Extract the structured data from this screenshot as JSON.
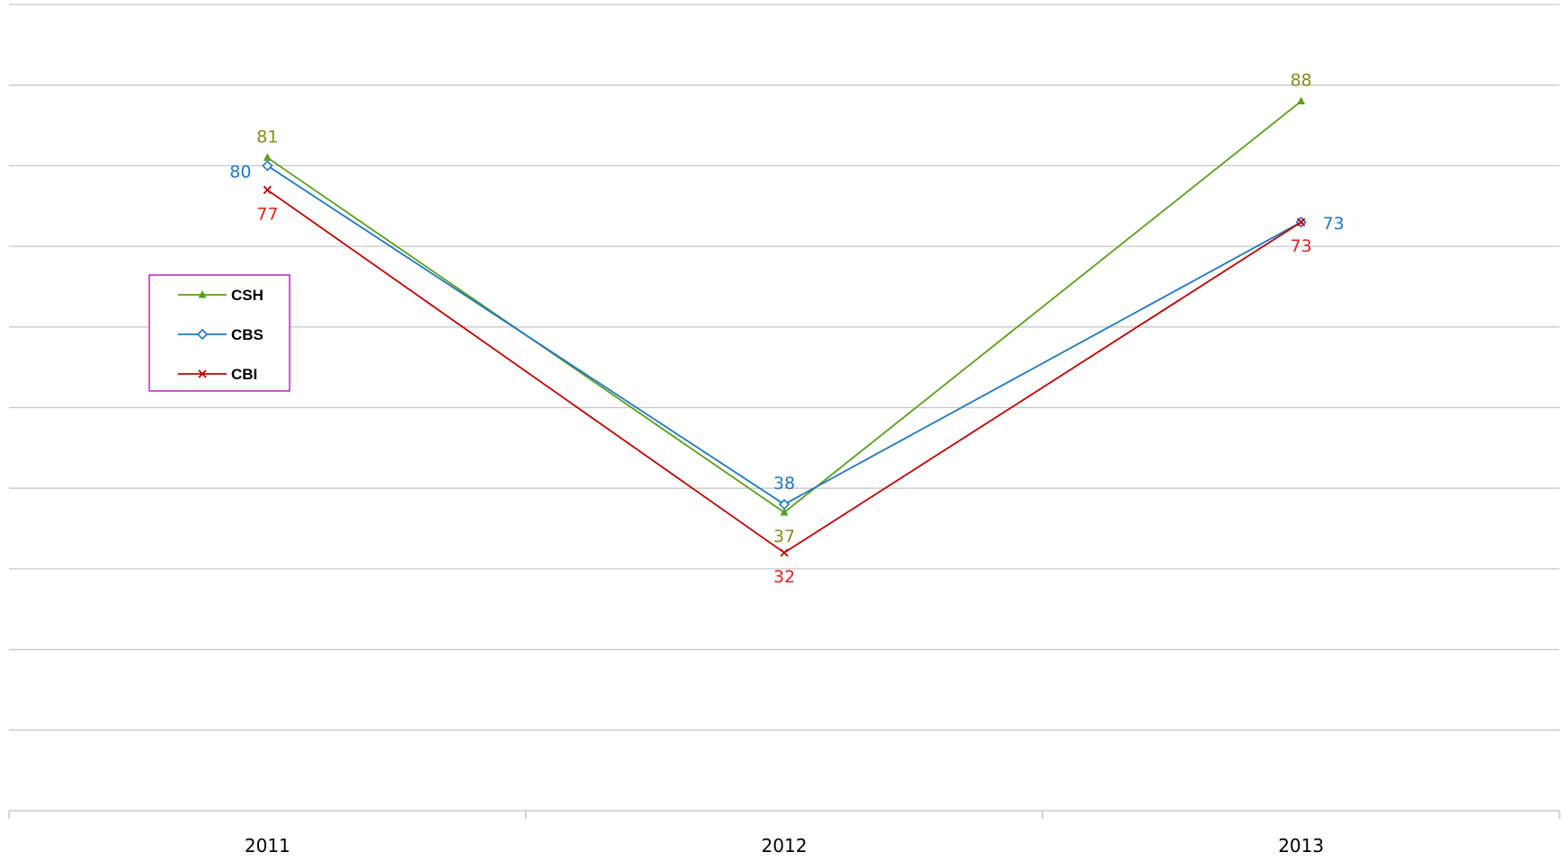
{
  "chart_data": {
    "type": "line",
    "title": "",
    "xlabel": "",
    "ylabel": "",
    "categories": [
      "2011",
      "2012",
      "2013"
    ],
    "ylim": [
      0,
      100
    ],
    "grid": true,
    "y_tick_labels_visible": false,
    "legend_position": "left",
    "series": [
      {
        "name": "CSH",
        "values": [
          81,
          37,
          88
        ],
        "line_color": "#5a9e1a",
        "label_color": "#8a8a1e",
        "marker": "triangle",
        "label_positions": [
          "above",
          "below",
          "above"
        ]
      },
      {
        "name": "CBS",
        "values": [
          80,
          38,
          73
        ],
        "line_color": "#1f77c4",
        "label_color": "#1f77c4",
        "marker": "diamond",
        "label_positions": [
          "left",
          "above",
          "right"
        ]
      },
      {
        "name": "CBI",
        "values": [
          77,
          32,
          73
        ],
        "line_color": "#c00000",
        "label_color": "#e0221f",
        "marker": "x",
        "label_positions": [
          "below",
          "below",
          "below"
        ]
      }
    ],
    "colors": {
      "grid": "#c8c8c8",
      "axis": "#bfbfbf",
      "legend_border": "#b000b0",
      "tick_label": "#000000"
    }
  }
}
